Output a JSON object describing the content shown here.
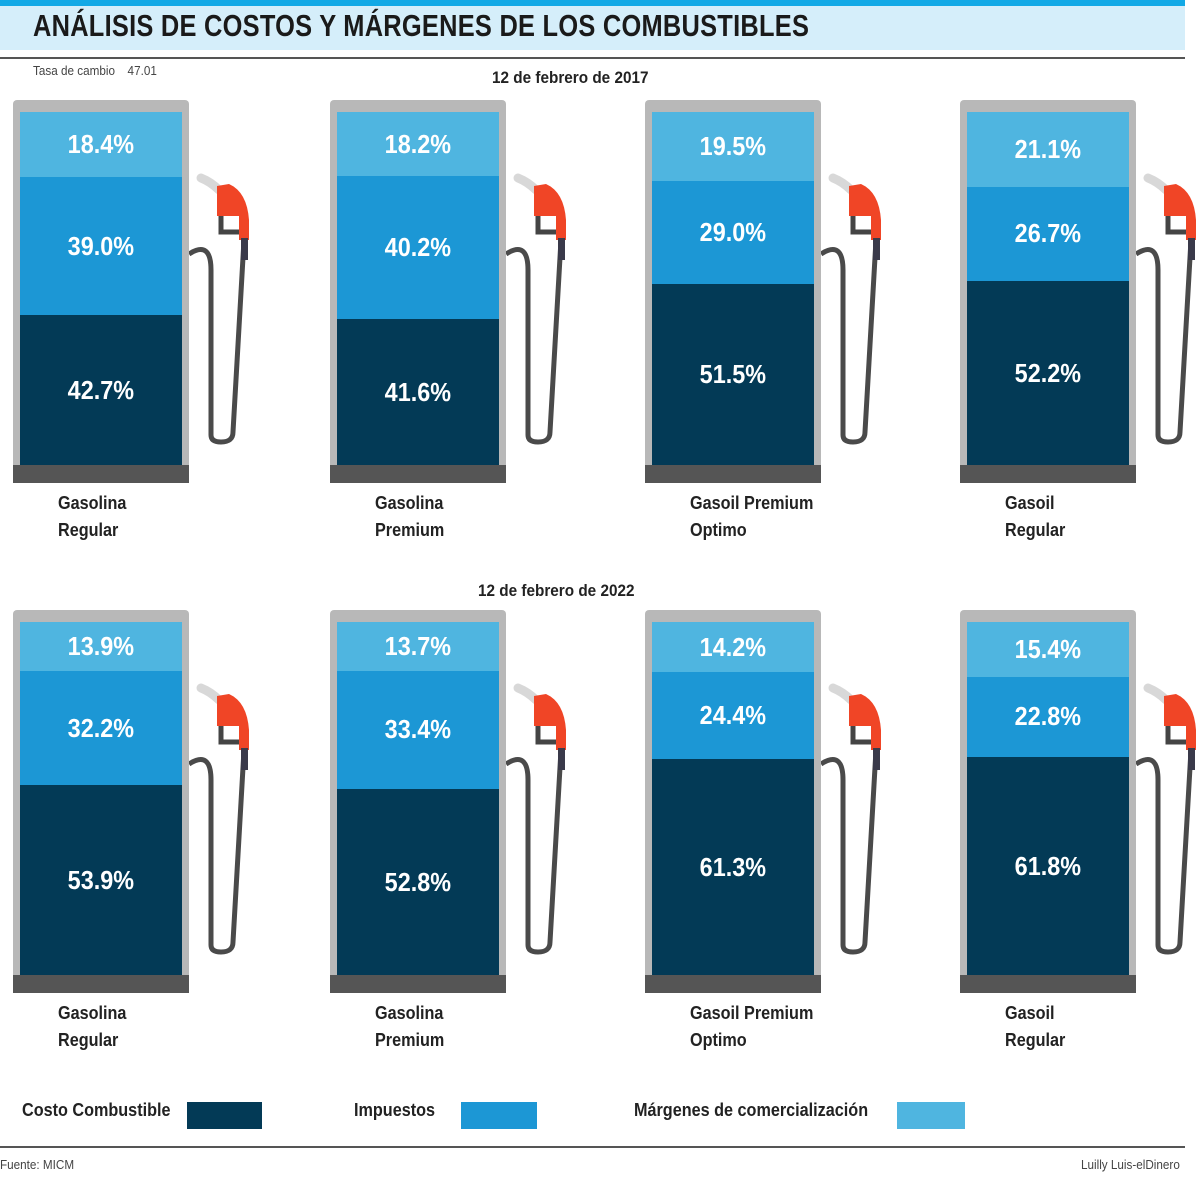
{
  "header": {
    "title": "ANÁLISIS DE COSTOS Y MÁRGENES DE LOS COMBUSTIBLES",
    "rate_label": "Tasa de cambio",
    "rate_value": "47.01"
  },
  "colors": {
    "costo": "#033a56",
    "impuestos": "#1c97d5",
    "margenes": "#4fb5e0",
    "frame": "#b8b8b8",
    "base": "#555555",
    "nozzle": "#f04526"
  },
  "chart_data": {
    "type": "bar",
    "stacked": true,
    "title": "ANÁLISIS DE COSTOS Y MÁRGENES DE LOS COMBUSTIBLES",
    "categories": [
      "Gasolina Regular",
      "Gasolina Premium",
      "Gasoil Premium Optimo",
      "Gasoil Regular"
    ],
    "panels": [
      {
        "date": "12 de febrero de 2017",
        "pumps": [
          {
            "label": [
              "Gasolina",
              "Regular"
            ],
            "costo": 42.7,
            "impuestos": 39.0,
            "margenes": 18.4
          },
          {
            "label": [
              "Gasolina",
              "Premium"
            ],
            "costo": 41.6,
            "impuestos": 40.2,
            "margenes": 18.2
          },
          {
            "label": [
              "Gasoil Premium",
              "Optimo"
            ],
            "costo": 51.5,
            "impuestos": 29.0,
            "margenes": 19.5
          },
          {
            "label": [
              "Gasoil",
              "Regular"
            ],
            "costo": 52.2,
            "impuestos": 26.7,
            "margenes": 21.1
          }
        ]
      },
      {
        "date": "12 de febrero de 2022",
        "pumps": [
          {
            "label": [
              "Gasolina",
              "Regular"
            ],
            "costo": 53.9,
            "impuestos": 32.2,
            "margenes": 13.9
          },
          {
            "label": [
              "Gasolina",
              "Premium"
            ],
            "costo": 52.8,
            "impuestos": 33.4,
            "margenes": 13.7
          },
          {
            "label": [
              "Gasoil Premium",
              "Optimo"
            ],
            "costo": 61.3,
            "impuestos": 24.4,
            "margenes": 14.2
          },
          {
            "label": [
              "Gasoil",
              "Regular"
            ],
            "costo": 61.8,
            "impuestos": 22.8,
            "margenes": 15.4
          }
        ]
      }
    ],
    "legend": [
      {
        "key": "costo",
        "label": "Costo Combustible"
      },
      {
        "key": "impuestos",
        "label": "Impuestos"
      },
      {
        "key": "margenes",
        "label": "Márgenes de comercialización"
      }
    ],
    "unit": "%"
  },
  "footer": {
    "source": "Fuente: MICM",
    "credit": "Luilly Luis-elDinero"
  }
}
